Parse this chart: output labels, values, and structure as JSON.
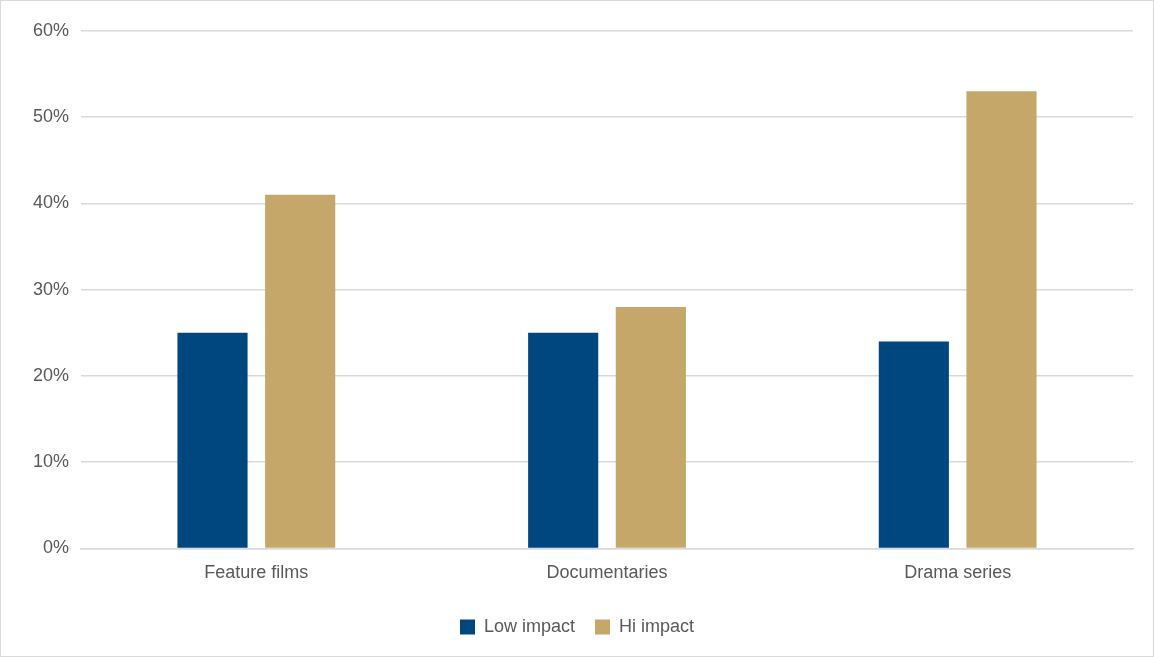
{
  "chart_data": {
    "type": "bar",
    "categories": [
      "Feature films",
      "Documentaries",
      "Drama series"
    ],
    "series": [
      {
        "name": "Low impact",
        "color": "#00467f",
        "values": [
          25,
          25,
          24
        ]
      },
      {
        "name": "Hi impact",
        "color": "#c4a769",
        "values": [
          41,
          28,
          53
        ]
      }
    ],
    "ylim": [
      0,
      60
    ],
    "yticks": [
      {
        "value": 0,
        "label": "0%"
      },
      {
        "value": 10,
        "label": "10%"
      },
      {
        "value": 20,
        "label": "20%"
      },
      {
        "value": 30,
        "label": "30%"
      },
      {
        "value": 40,
        "label": "40%"
      },
      {
        "value": 50,
        "label": "50%"
      },
      {
        "value": 60,
        "label": "60%"
      }
    ],
    "grid": "y",
    "legend": "bottom"
  }
}
